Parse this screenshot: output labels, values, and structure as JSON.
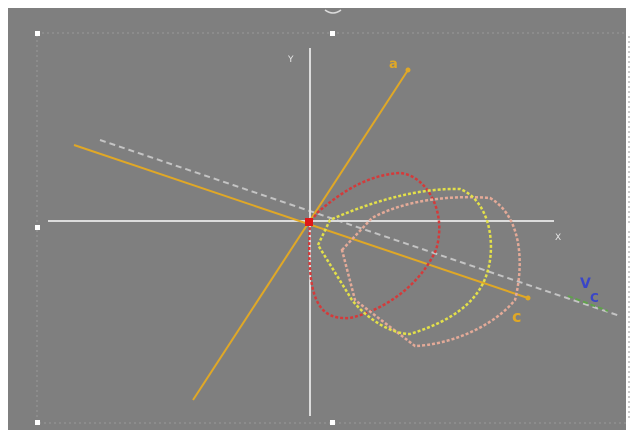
{
  "canvas": {
    "background": "#7f7f7f",
    "frame": "#9a9a9a"
  },
  "axes": {
    "x_label": "X",
    "y_label": "Y",
    "color": "#dcdcdc"
  },
  "lines": {
    "a": {
      "label": "a",
      "color": "#e0a826"
    },
    "c": {
      "label": "c",
      "color": "#e0a826"
    },
    "dashed": {
      "color": "#c4c4c4"
    },
    "v": {
      "label": "V",
      "color": "#3a46c8"
    },
    "c_blue": {
      "label": "C",
      "color": "#3a46c8"
    },
    "green": {
      "color": "#5fa24a"
    }
  },
  "curves": {
    "red": {
      "color": "#d43a3a"
    },
    "yellow": {
      "color": "#e3e04a"
    },
    "pink": {
      "color": "#e4aa98"
    }
  },
  "origin": {
    "color": "#e01818"
  },
  "handles": {
    "color": "#ffffff"
  }
}
